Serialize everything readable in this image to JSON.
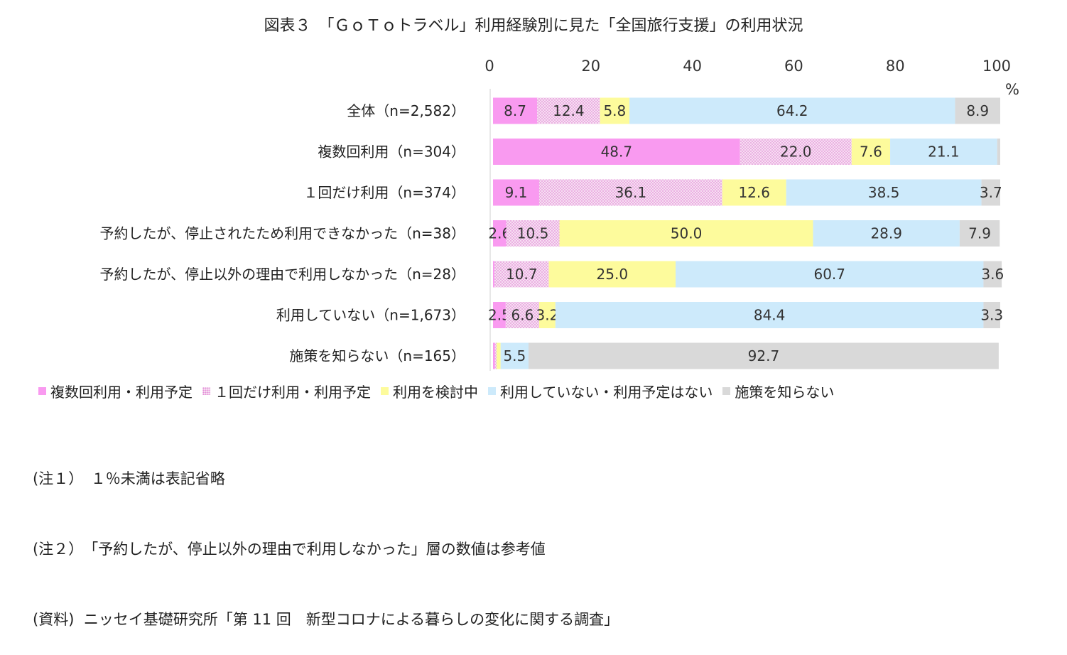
{
  "chart_data": {
    "type": "bar",
    "orientation": "horizontal",
    "stacked": true,
    "title": "図表３　「ＧｏＴｏトラベル」利用経験別に見た「全国旅行支援」の利用状況",
    "unit": "%",
    "xlim": [
      0,
      100
    ],
    "xticks": [
      "0",
      "20",
      "40",
      "60",
      "80",
      "100"
    ],
    "grid": false,
    "legend_position": "bottom",
    "categories": [
      "全体（n=2,582）",
      "複数回利用（n=304）",
      "１回だけ利用（n=374）",
      "予約したが、停止されたため利用できなかった（n=38）",
      "予約したが、停止以外の理由で利用しなかった（n=28）",
      "利用していない（n=1,673）",
      "施策を知らない（n=165）"
    ],
    "series": [
      {
        "name": "複数回利用・利用予定",
        "color": "#f99af0",
        "pattern": "solid",
        "values": [
          8.7,
          48.7,
          9.1,
          2.6,
          0.3,
          2.5,
          0.4
        ],
        "labels": [
          "8.7",
          "48.7",
          "9.1",
          "2.6",
          "",
          "2.5",
          ""
        ]
      },
      {
        "name": "１回だけ利用・利用予定",
        "color": "#f3d0ec",
        "pattern": "dots",
        "values": [
          12.4,
          22.0,
          36.1,
          10.5,
          10.7,
          6.6,
          0.3
        ],
        "labels": [
          "12.4",
          "22.0",
          "36.1",
          "10.5",
          "10.7",
          "6.6",
          ""
        ]
      },
      {
        "name": "利用を検討中",
        "color": "#fdfb9c",
        "pattern": "solid",
        "values": [
          5.8,
          7.6,
          12.6,
          50.0,
          25.0,
          3.2,
          0.8
        ],
        "labels": [
          "5.8",
          "7.6",
          "12.6",
          "50.0",
          "25.0",
          "3.2",
          ""
        ]
      },
      {
        "name": "利用していない・利用予定はない",
        "color": "#cdeafb",
        "pattern": "solid",
        "values": [
          64.2,
          21.1,
          38.5,
          28.9,
          60.7,
          84.4,
          5.5
        ],
        "labels": [
          "64.2",
          "21.1",
          "38.5",
          "28.9",
          "60.7",
          "84.4",
          "5.5"
        ]
      },
      {
        "name": "施策を知らない",
        "color": "#d9d9d9",
        "pattern": "solid",
        "values": [
          8.9,
          0.6,
          3.7,
          7.9,
          3.6,
          3.3,
          92.7
        ],
        "labels": [
          "8.9",
          "",
          "3.7",
          "7.9",
          "3.6",
          "3.3",
          "92.7"
        ]
      }
    ]
  },
  "notes": [
    "(注１）　１％未満は表記省略",
    "(注２）　「予約したが、停止以外の理由で利用しなかった」層の数値は参考値",
    "(資料)  ニッセイ基礎研究所「第 11 回　新型コロナによる暮らしの変化に関する調査」"
  ]
}
